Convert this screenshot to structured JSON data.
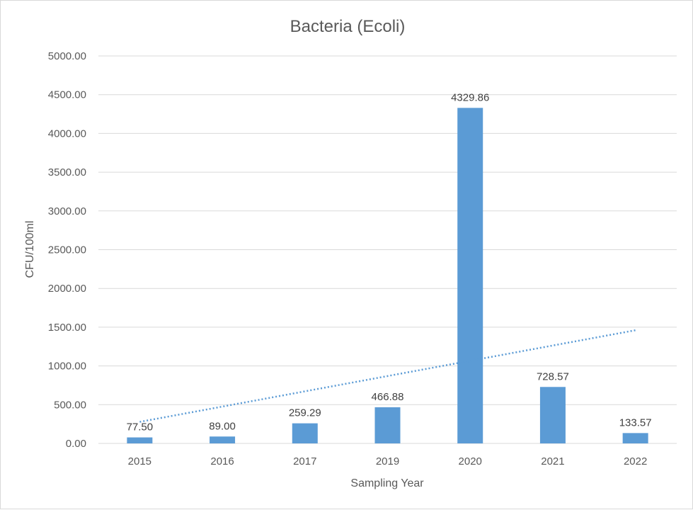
{
  "chart_data": {
    "type": "bar",
    "title": "Bacteria (Ecoli)",
    "xlabel": "Sampling Year",
    "ylabel": "CFU/100ml",
    "categories": [
      "2015",
      "2016",
      "2017",
      "2019",
      "2020",
      "2021",
      "2022"
    ],
    "values": [
      77.5,
      89.0,
      259.29,
      466.88,
      4329.86,
      728.57,
      133.57
    ],
    "data_labels": [
      "77.50",
      "89.00",
      "259.29",
      "466.88",
      "4329.86",
      "728.57",
      "133.57"
    ],
    "ylim": [
      0,
      5000
    ],
    "yticks": [
      "0.00",
      "500.00",
      "1000.00",
      "1500.00",
      "2000.00",
      "2500.00",
      "3000.00",
      "3500.00",
      "4000.00",
      "4500.00",
      "5000.00"
    ],
    "ytick_values": [
      0,
      500,
      1000,
      1500,
      2000,
      2500,
      3000,
      3500,
      4000,
      4500,
      5000
    ],
    "grid": true,
    "legend": "none",
    "trendline": {
      "type": "linear",
      "style": "dotted"
    },
    "colors": {
      "bar": "#5b9bd5",
      "trendline": "#5b9bd5",
      "grid": "#d9d9d9",
      "text": "#595959"
    }
  }
}
